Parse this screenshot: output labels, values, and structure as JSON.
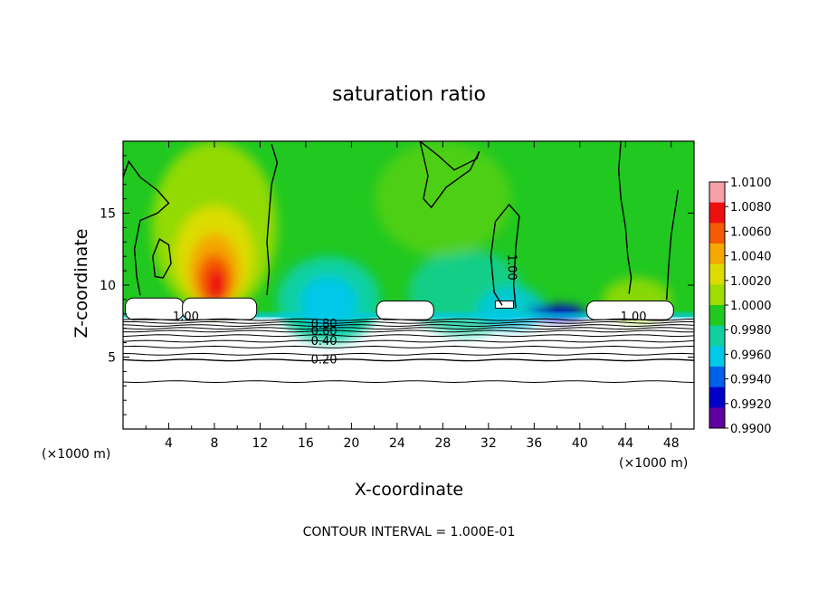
{
  "chart_data": {
    "type": "heatmap",
    "title": "saturation ratio",
    "xlabel": "X-coordinate",
    "ylabel": "Z-coordinate",
    "x_unit": "(×1000 m)",
    "y_unit": "(×1000 m)",
    "xlim": [
      0,
      50
    ],
    "ylim": [
      0,
      20
    ],
    "x_ticks": [
      4,
      8,
      12,
      16,
      20,
      24,
      28,
      32,
      36,
      40,
      44,
      48
    ],
    "y_ticks": [
      5,
      10,
      15
    ],
    "colorbar": {
      "min": 0.99,
      "max": 1.01,
      "labels": [
        "1.0100",
        "1.0080",
        "1.0060",
        "1.0040",
        "1.0020",
        "1.0000",
        "0.9980",
        "0.9960",
        "0.9940",
        "0.9920",
        "0.9900"
      ],
      "colors": [
        "#f8a0a8",
        "#ee1010",
        "#f45a00",
        "#f4a800",
        "#dcdc00",
        "#a0dc00",
        "#20c820",
        "#10d0a0",
        "#00c8e8",
        "#0060e8",
        "#0000c8",
        "#6000a0"
      ]
    },
    "contour_interval": "CONTOUR INTERVAL = 1.000E-01",
    "contour_labels": [
      {
        "text": "1.00",
        "x": 5.5,
        "z": 7.8
      },
      {
        "text": "1.00",
        "x": 44.7,
        "z": 7.8
      },
      {
        "text": "1.00",
        "x": 33.7,
        "z": 11.5
      },
      {
        "text": "0.80",
        "x": 17.6,
        "z": 7.3
      },
      {
        "text": "0.60",
        "x": 17.6,
        "z": 6.8
      },
      {
        "text": "0.40",
        "x": 17.6,
        "z": 6.1
      },
      {
        "text": "0.20",
        "x": 17.6,
        "z": 4.8
      }
    ]
  }
}
